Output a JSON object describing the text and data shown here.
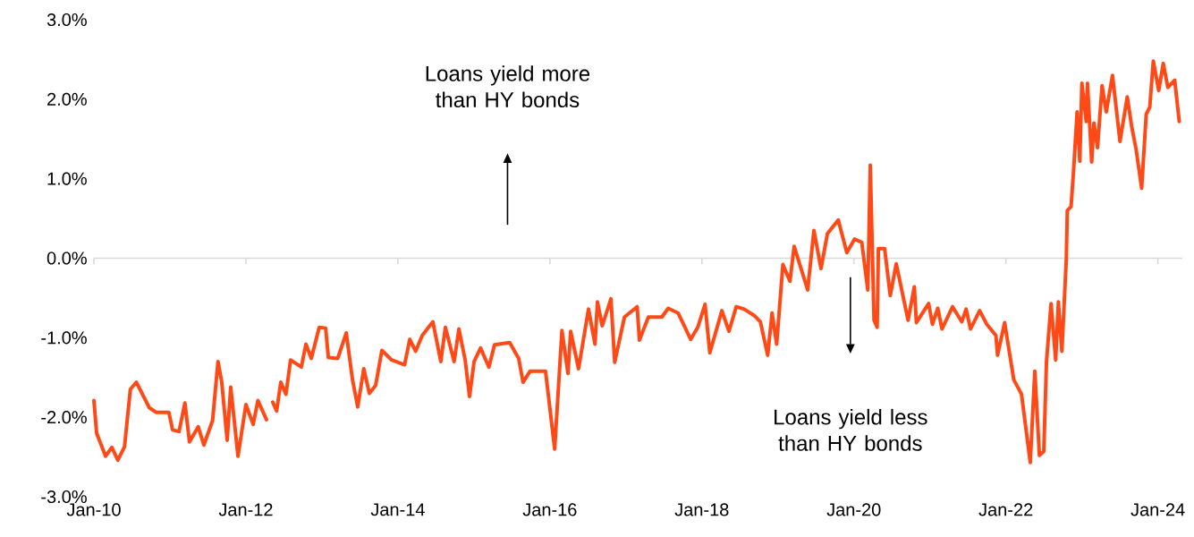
{
  "chart_data": {
    "type": "line",
    "annotations": [
      "Loans yield more than HY bonds",
      "Loans yield less than HY bonds"
    ],
    "xlim": [
      "2010-01-01",
      "2024-04-28"
    ],
    "xticks": [
      {
        "value": "2010-01-01",
        "label": "Jan-10"
      },
      {
        "value": "2012-01-01",
        "label": "Jan-12"
      },
      {
        "value": "2014-01-01",
        "label": "Jan-14"
      },
      {
        "value": "2016-01-01",
        "label": "Jan-16"
      },
      {
        "value": "2018-01-01",
        "label": "Jan-18"
      },
      {
        "value": "2020-01-01",
        "label": "Jan-20"
      },
      {
        "value": "2022-01-01",
        "label": "Jan-22"
      },
      {
        "value": "2024-01-01",
        "label": "Jan-24"
      }
    ],
    "ylim": [
      -3,
      3
    ],
    "yticks": [
      {
        "value": -3,
        "label": "-3.0%"
      },
      {
        "value": -2,
        "label": "-2.0%"
      },
      {
        "value": -1,
        "label": "-1.0%"
      },
      {
        "value": 0,
        "label": "0.0%"
      },
      {
        "value": 1,
        "label": "1.0%"
      },
      {
        "value": 2,
        "label": "2.0%"
      },
      {
        "value": 3,
        "label": "3.0%"
      }
    ],
    "x": [
      "2010-01-01",
      "2010-01-14",
      "2010-02-26",
      "2010-03-28",
      "2010-04-26",
      "2010-05-28",
      "2010-06-25",
      "2010-07-24",
      "2010-09-24",
      "2010-10-28",
      "2010-12-27",
      "2011-01-14",
      "2011-02-14",
      "2011-03-14",
      "2011-04-05",
      "2011-05-17",
      "2011-06-13",
      "2011-07-25",
      "2011-08-20",
      "2011-09-07",
      "2011-10-03",
      "2011-10-20",
      "2011-11-24",
      "2012-01-01",
      "2012-02-05",
      "2012-02-28",
      "2012-04-09",
      "2012-04-24",
      "2012-05-09",
      "2012-05-28",
      "2012-06-17",
      "2012-07-12",
      "2012-08-03",
      "2012-09-24",
      "2012-10-16",
      "2012-11-11",
      "2012-12-19",
      "2013-01-19",
      "2013-02-01",
      "2013-03-18",
      "2013-04-28",
      "2013-05-28",
      "2013-06-22",
      "2013-07-21",
      "2013-08-17",
      "2013-09-16",
      "2013-10-16",
      "2013-12-02",
      "2014-02-02",
      "2014-02-27",
      "2014-03-27",
      "2014-04-28",
      "2014-06-18",
      "2014-07-26",
      "2014-08-17",
      "2014-09-28",
      "2014-10-21",
      "2014-11-20",
      "2014-12-11",
      "2015-01-02",
      "2015-02-02",
      "2015-03-14",
      "2015-04-10",
      "2015-06-22",
      "2015-08-04",
      "2015-08-25",
      "2015-09-28",
      "2015-12-11",
      "2016-01-24",
      "2016-02-28",
      "2016-03-28",
      "2016-04-10",
      "2016-05-18",
      "2016-07-05",
      "2016-08-05",
      "2016-08-17",
      "2016-09-09",
      "2016-10-21",
      "2016-11-08",
      "2016-12-25",
      "2017-02-24",
      "2017-03-07",
      "2017-04-19",
      "2017-06-23",
      "2017-07-23",
      "2017-09-09",
      "2017-11-08",
      "2017-12-12",
      "2018-01-16",
      "2018-02-08",
      "2018-04-07",
      "2018-05-11",
      "2018-06-15",
      "2018-07-23",
      "2018-09-09",
      "2018-10-09",
      "2018-11-13",
      "2018-12-04",
      "2018-12-26",
      "2019-01-25",
      "2019-02-28",
      "2019-03-20",
      "2019-05-24",
      "2019-06-23",
      "2019-07-27",
      "2019-08-27",
      "2019-10-18",
      "2019-11-28",
      "2020-01-04",
      "2020-02-08",
      "2020-03-08",
      "2020-03-20",
      "2020-04-07",
      "2020-04-22",
      "2020-04-28",
      "2020-05-28",
      "2020-06-24",
      "2020-07-23",
      "2020-09-18",
      "2020-10-18",
      "2020-10-28",
      "2020-12-26",
      "2021-01-13",
      "2021-02-08",
      "2021-02-28",
      "2021-04-20",
      "2021-06-03",
      "2021-06-24",
      "2021-07-15",
      "2021-08-28",
      "2021-10-01",
      "2021-11-14",
      "2021-11-22",
      "2021-12-26",
      "2022-02-08",
      "2022-03-17",
      "2022-04-12",
      "2022-04-28",
      "2022-05-20",
      "2022-06-11",
      "2022-07-02",
      "2022-07-15",
      "2022-08-06",
      "2022-08-28",
      "2022-09-10",
      "2022-09-27",
      "2022-10-18",
      "2022-10-23",
      "2022-11-10",
      "2022-11-22",
      "2022-12-09",
      "2022-12-22",
      "2023-01-01",
      "2023-01-22",
      "2023-01-28",
      "2023-02-17",
      "2023-02-28",
      "2023-03-17",
      "2023-04-08",
      "2023-04-28",
      "2023-05-28",
      "2023-07-03",
      "2023-08-07",
      "2023-08-28",
      "2023-09-19",
      "2023-10-15",
      "2023-11-06",
      "2023-11-23",
      "2023-12-10",
      "2024-01-05",
      "2024-01-27",
      "2024-02-18",
      "2024-03-22",
      "2024-04-13"
    ],
    "series": [
      {
        "color": "#ff4a17",
        "values": [
          -1.79,
          -2.2,
          -2.49,
          -2.38,
          -2.54,
          -2.37,
          -1.65,
          -1.56,
          -1.88,
          -1.94,
          -1.94,
          -2.16,
          -2.18,
          -1.82,
          -2.31,
          -2.12,
          -2.35,
          -2.04,
          -1.3,
          -1.56,
          -2.29,
          -1.62,
          -2.49,
          -1.84,
          -2.09,
          -1.79,
          -2.03,
          null,
          -1.81,
          -1.92,
          -1.56,
          -1.71,
          -1.28,
          -1.37,
          -1.08,
          -1.26,
          -0.87,
          -0.88,
          -1.25,
          -1.26,
          -0.94,
          -1.53,
          -1.87,
          -1.39,
          -1.7,
          -1.6,
          -1.16,
          -1.28,
          -1.34,
          -1.02,
          -1.17,
          -0.97,
          -0.8,
          -1.3,
          -0.87,
          -1.3,
          -0.89,
          -1.28,
          -1.74,
          -1.3,
          -1.13,
          -1.37,
          -1.09,
          -1.06,
          -1.26,
          -1.56,
          -1.42,
          -1.42,
          -2.4,
          -0.91,
          -1.45,
          -0.92,
          -1.39,
          -0.64,
          -1.08,
          -0.55,
          -0.85,
          -0.51,
          -1.31,
          -0.74,
          -0.61,
          -1.03,
          -0.74,
          -0.74,
          -0.63,
          -0.69,
          -1.02,
          -0.87,
          -0.58,
          -1.19,
          -0.66,
          -0.92,
          -0.61,
          -0.64,
          -0.72,
          -0.8,
          -1.22,
          -0.69,
          -1.08,
          -0.08,
          -0.29,
          0.15,
          -0.4,
          0.35,
          -0.13,
          0.31,
          0.48,
          0.07,
          0.24,
          0.2,
          -0.4,
          1.17,
          -0.78,
          -0.87,
          0.12,
          0.12,
          -0.47,
          -0.07,
          -0.78,
          -0.36,
          -0.81,
          -0.57,
          -0.83,
          -0.63,
          -0.89,
          -0.61,
          -0.8,
          -0.64,
          -0.89,
          -0.66,
          -0.83,
          -0.97,
          -1.22,
          -0.81,
          -1.53,
          -1.71,
          -2.24,
          -2.57,
          -1.42,
          -2.48,
          -2.43,
          -1.3,
          -0.57,
          -1.28,
          -0.55,
          -1.17,
          -0.02,
          0.6,
          0.65,
          1.1,
          1.84,
          1.22,
          2.2,
          1.72,
          2.2,
          1.21,
          1.7,
          1.39,
          2.17,
          1.84,
          2.3,
          1.47,
          2.03,
          1.66,
          1.36,
          0.88,
          1.81,
          1.9,
          2.48,
          2.11,
          2.45,
          2.15,
          2.24,
          1.72
        ]
      }
    ]
  }
}
